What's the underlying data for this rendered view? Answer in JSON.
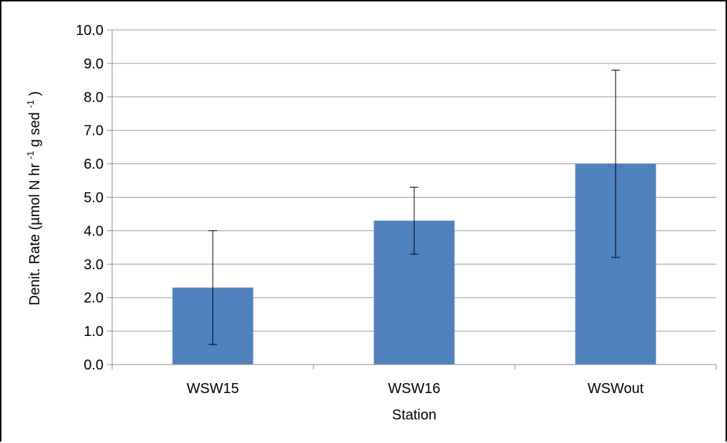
{
  "chart_data": {
    "type": "bar",
    "title": "",
    "xlabel": "Station",
    "ylabel": {
      "prefix": "Denit. Rate (µmol N hr",
      "sup1": "-1",
      "middle": "g sed",
      "sup2": "-1",
      "suffix": ")"
    },
    "categories": [
      "WSW15",
      "WSW16",
      "WSWout"
    ],
    "series": [
      {
        "values": [
          2.3,
          4.3,
          6.0
        ],
        "error_low": [
          0.6,
          3.3,
          3.2
        ],
        "error_high": [
          4.0,
          5.3,
          8.8
        ],
        "color": "#4F81BD"
      }
    ],
    "ylim": [
      0,
      10
    ],
    "yticks": [
      "0.0",
      "1.0",
      "2.0",
      "3.0",
      "4.0",
      "5.0",
      "6.0",
      "7.0",
      "8.0",
      "9.0",
      "10.0"
    ],
    "grid": true,
    "legend": "none",
    "colors": {
      "gridline": "#999999",
      "axis": "#8c8c8c",
      "errorbar": "#000000"
    }
  }
}
